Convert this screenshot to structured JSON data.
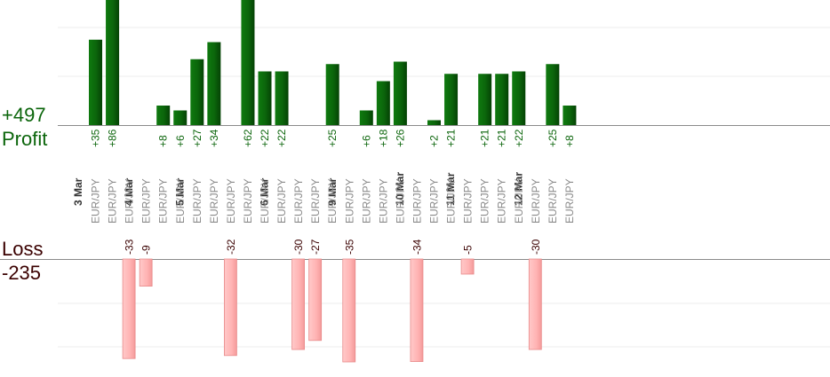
{
  "chart_data": {
    "type": "bar",
    "profit": {
      "label": "Profit",
      "total": "+497",
      "color": "#0b650b"
    },
    "loss": {
      "label": "Loss",
      "total": "-235",
      "color": "#ffb3b3"
    },
    "days": [
      "3 Mar",
      "4 Mar",
      "5 Mar",
      "6 Mar",
      "9 Mar",
      "10 Mar",
      "11 Mar",
      "12 Mar"
    ],
    "trades": [
      {
        "day": "3 Mar",
        "pair": "EUR/JPY",
        "value": 35
      },
      {
        "day": "3 Mar",
        "pair": "EUR/JPY",
        "value": 86
      },
      {
        "day": "3 Mar",
        "pair": "EUR/JPY",
        "value": -33
      },
      {
        "day": "4 Mar",
        "pair": "EUR/JPY",
        "value": -9
      },
      {
        "day": "4 Mar",
        "pair": "EUR/JPY",
        "value": 8
      },
      {
        "day": "4 Mar",
        "pair": "EUR/JPY",
        "value": 6
      },
      {
        "day": "5 Mar",
        "pair": "EUR/JPY",
        "value": 27
      },
      {
        "day": "5 Mar",
        "pair": "EUR/JPY",
        "value": 34
      },
      {
        "day": "5 Mar",
        "pair": "EUR/JPY",
        "value": -32
      },
      {
        "day": "5 Mar",
        "pair": "EUR/JPY",
        "value": 62
      },
      {
        "day": "5 Mar",
        "pair": "EUR/JPY",
        "value": 22
      },
      {
        "day": "6 Mar",
        "pair": "EUR/JPY",
        "value": 22
      },
      {
        "day": "6 Mar",
        "pair": "EUR/JPY",
        "value": -30
      },
      {
        "day": "6 Mar",
        "pair": "EUR/JPY",
        "value": -27
      },
      {
        "day": "6 Mar",
        "pair": "EUR/JPY",
        "value": 25
      },
      {
        "day": "9 Mar",
        "pair": "EUR/JPY",
        "value": -35
      },
      {
        "day": "9 Mar",
        "pair": "EUR/JPY",
        "value": 6
      },
      {
        "day": "9 Mar",
        "pair": "EUR/JPY",
        "value": 18
      },
      {
        "day": "9 Mar",
        "pair": "EUR/JPY",
        "value": 26
      },
      {
        "day": "10 Mar",
        "pair": "EUR/JPY",
        "value": -34
      },
      {
        "day": "10 Mar",
        "pair": "EUR/JPY",
        "value": 2
      },
      {
        "day": "10 Mar",
        "pair": "EUR/JPY",
        "value": 21
      },
      {
        "day": "11 Mar",
        "pair": "EUR/JPY",
        "value": -5
      },
      {
        "day": "11 Mar",
        "pair": "EUR/JPY",
        "value": 21
      },
      {
        "day": "11 Mar",
        "pair": "EUR/JPY",
        "value": 21
      },
      {
        "day": "11 Mar",
        "pair": "EUR/JPY",
        "value": 22
      },
      {
        "day": "12 Mar",
        "pair": "EUR/JPY",
        "value": -30
      },
      {
        "day": "12 Mar",
        "pair": "EUR/JPY",
        "value": 25
      },
      {
        "day": "12 Mar",
        "pair": "EUR/JPY",
        "value": 8
      }
    ],
    "grid": true,
    "legend": "none"
  }
}
